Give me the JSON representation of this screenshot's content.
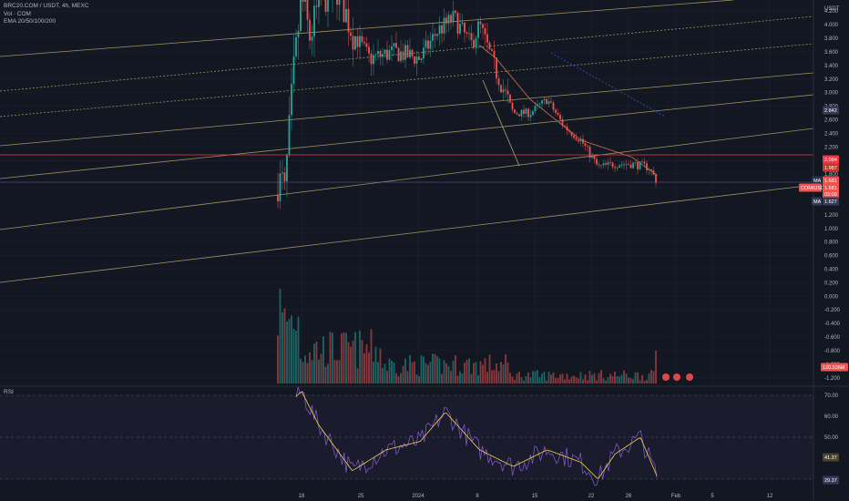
{
  "legend": {
    "symbol": "BRC20.COM / USDT, 4h, MEXC",
    "volume": "Vol · COM",
    "ema": "EMA 20/50/100/200"
  },
  "rsi_label": "RSI",
  "price_axis_unit": "USDT",
  "price_ticks": [
    "4.200",
    "4.000",
    "3.800",
    "3.600",
    "3.400",
    "3.200",
    "3.000",
    "2.800",
    "2.600",
    "2.400",
    "2.200",
    "2.000",
    "1.800",
    "1.600",
    "1.400",
    "1.200",
    "1.000",
    "0.800",
    "0.600",
    "0.400",
    "0.200",
    "0.000",
    "-0.200",
    "-0.400",
    "-0.600",
    "-0.800",
    "-1.000",
    "-1.200"
  ],
  "rsi_ticks": [
    "70.00",
    "60.00",
    "50.00"
  ],
  "time_ticks": [
    "18",
    "25",
    "2024",
    "8",
    "15",
    "22",
    "26",
    "Feb",
    "5",
    "12"
  ],
  "tags": {
    "ema_level": "2.842",
    "resistance_high": "2.084",
    "resistance_low": "1.987",
    "symbol_tag": "COM/USDT",
    "last_price": "1.681",
    "countdown": "03:09",
    "last_price_small": "1.681",
    "mid_label": "MA",
    "mid_value": "1.627",
    "volume_value": "120.536M",
    "rsi_ma": "41.37",
    "rsi_value": "29.37"
  },
  "colors": {
    "up": "#26a69a",
    "down": "#ef5350",
    "channel": "#b8a86a",
    "ema": "#c0694a",
    "resistance": "#f23645",
    "blue_dashed": "#2846b4",
    "rsi": "#7e57c2",
    "rsi_ma": "#f0d44a"
  },
  "chart_data": {
    "type": "candlestick",
    "price_axis": {
      "min": -1.2,
      "max": 4.3
    },
    "rsi_axis": {
      "min": 25,
      "max": 75,
      "bands": [
        30,
        70
      ]
    },
    "ema_anchors": [
      {
        "x": "Jan 8",
        "y": 3.7
      },
      {
        "x": "Jan 10",
        "y": 3.5
      },
      {
        "x": "Jan 14",
        "y": 2.9
      },
      {
        "x": "Jan 20",
        "y": 2.3
      },
      {
        "x": "Jan 26",
        "y": 2.05
      },
      {
        "x": "Jan 29",
        "y": 1.78
      }
    ],
    "horizontal_levels": [
      2.084,
      1.681
    ],
    "price_anchors": [
      {
        "x": "Dec 16",
        "y": 1.5
      },
      {
        "x": "Dec 17",
        "y": 3.2
      },
      {
        "x": "Dec 18",
        "y": 4.4
      },
      {
        "x": "Dec 19",
        "y": 3.8
      },
      {
        "x": "Dec 20",
        "y": 4.3
      },
      {
        "x": "Dec 22",
        "y": 4.6
      },
      {
        "x": "Dec 24",
        "y": 3.9
      },
      {
        "x": "Dec 26",
        "y": 3.5
      },
      {
        "x": "Dec 29",
        "y": 3.6
      },
      {
        "x": "Jan 1",
        "y": 3.5
      },
      {
        "x": "Jan 3",
        "y": 3.9
      },
      {
        "x": "Jan 5",
        "y": 4.1
      },
      {
        "x": "Jan 7",
        "y": 3.7
      },
      {
        "x": "Jan 8",
        "y": 4.0
      },
      {
        "x": "Jan 10",
        "y": 3.3
      },
      {
        "x": "Jan 12",
        "y": 2.7
      },
      {
        "x": "Jan 14",
        "y": 2.7
      },
      {
        "x": "Jan 16",
        "y": 2.9
      },
      {
        "x": "Jan 18",
        "y": 2.5
      },
      {
        "x": "Jan 20",
        "y": 2.3
      },
      {
        "x": "Jan 22",
        "y": 1.9
      },
      {
        "x": "Jan 24",
        "y": 1.95
      },
      {
        "x": "Jan 26",
        "y": 1.95
      },
      {
        "x": "Jan 28",
        "y": 1.9
      },
      {
        "x": "Jan 29",
        "y": 1.68
      }
    ],
    "rsi_anchors": [
      {
        "x": "Dec 16",
        "y": 64
      },
      {
        "x": "Dec 18",
        "y": 72
      },
      {
        "x": "Dec 20",
        "y": 56
      },
      {
        "x": "Dec 24",
        "y": 34
      },
      {
        "x": "Dec 28",
        "y": 44
      },
      {
        "x": "Jan 1",
        "y": 48
      },
      {
        "x": "Jan 4",
        "y": 62
      },
      {
        "x": "Jan 8",
        "y": 44
      },
      {
        "x": "Jan 12",
        "y": 36
      },
      {
        "x": "Jan 16",
        "y": 44
      },
      {
        "x": "Jan 20",
        "y": 38
      },
      {
        "x": "Jan 22",
        "y": 30
      },
      {
        "x": "Jan 24",
        "y": 42
      },
      {
        "x": "Jan 27",
        "y": 50
      },
      {
        "x": "Jan 29",
        "y": 31
      }
    ]
  }
}
